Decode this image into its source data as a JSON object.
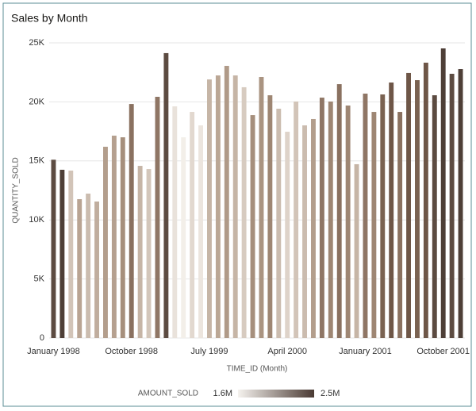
{
  "chart_data": {
    "type": "bar",
    "title": "Sales by Month",
    "x_label": "TIME_ID (Month)",
    "y_label": "QUANTITY_SOLD",
    "categories": [
      "January 1998",
      null,
      null,
      null,
      null,
      null,
      null,
      null,
      null,
      "October 1998",
      null,
      null,
      null,
      null,
      null,
      null,
      null,
      null,
      "July 1999",
      null,
      null,
      null,
      null,
      null,
      null,
      null,
      null,
      "April 2000",
      null,
      null,
      null,
      null,
      null,
      null,
      null,
      null,
      "January 2001",
      null,
      null,
      null,
      null,
      null,
      null,
      null,
      null,
      "October 2001",
      null,
      null
    ],
    "values": [
      15100,
      14250,
      14180,
      11760,
      12230,
      11560,
      16200,
      17140,
      17000,
      19820,
      14580,
      14310,
      20430,
      24130,
      19620,
      17000,
      19150,
      18010,
      21900,
      22240,
      23050,
      22240,
      21240,
      18880,
      22110,
      20560,
      19420,
      17470,
      20030,
      18010,
      18550,
      20360,
      20030,
      21500,
      19690,
      14720,
      20700,
      19150,
      20630,
      21640,
      19150,
      22450,
      21840,
      23320,
      20560,
      24530,
      22380,
      22780
    ],
    "colors": [
      "#5c4b41",
      "#4e3f37",
      "#d2c4b8",
      "#b9a493",
      "#cbbcaf",
      "#c0ad9e",
      "#b39e8c",
      "#b5a08f",
      "#a68f7c",
      "#8a7160",
      "#c6b5a6",
      "#d3c6ba",
      "#8f7665",
      "#5c4b41",
      "#e9e2db",
      "#f3efe9",
      "#e2d8cf",
      "#ece5de",
      "#c6b5a6",
      "#bba795",
      "#b09a88",
      "#c6b5a6",
      "#d7cbc0",
      "#a68f7c",
      "#aa9481",
      "#9e8673",
      "#cbbcaf",
      "#ded3c9",
      "#d2c4b8",
      "#cbbcaf",
      "#b39e8c",
      "#8f7665",
      "#9e8673",
      "#8a7160",
      "#9e8673",
      "#c6b5a6",
      "#8f7665",
      "#9e8673",
      "#7a6251",
      "#6e5647",
      "#8a7160",
      "#6e5647",
      "#7a6251",
      "#6e5647",
      "#5c4b41",
      "#4e3f37",
      "#5c4b41",
      "#4e3f37"
    ],
    "ylim": [
      0,
      25000
    ],
    "yticks": [
      0,
      {
        "value": 5000,
        "label": "5K"
      },
      {
        "value": 10000,
        "label": "10K"
      },
      {
        "value": 15000,
        "label": "15K"
      },
      {
        "value": 20000,
        "label": "20K"
      },
      {
        "value": 25000,
        "label": "25K"
      }
    ],
    "grid": true,
    "color_legend": {
      "title": "AMOUNT_SOLD",
      "min_label": "1.6M",
      "max_label": "2.5M",
      "colors": [
        "#f5f2ee",
        "#4a3a33"
      ]
    }
  }
}
